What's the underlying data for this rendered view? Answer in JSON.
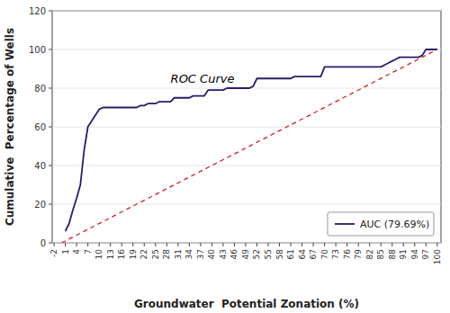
{
  "chart_data": {
    "type": "line",
    "xlabel": "Groundwater  Potential Zonation (%)",
    "ylabel": "Cumulative  Percentage of Wells",
    "xlim": [
      -2.5,
      101
    ],
    "ylim": [
      0,
      120
    ],
    "xticks": [
      -2,
      1,
      4,
      7,
      10,
      13,
      16,
      19,
      22,
      25,
      28,
      31,
      34,
      37,
      40,
      43,
      46,
      49,
      52,
      55,
      58,
      61,
      64,
      67,
      70,
      73,
      76,
      79,
      82,
      85,
      88,
      91,
      94,
      97,
      100
    ],
    "yticks": [
      0,
      20,
      40,
      60,
      80,
      100,
      120
    ],
    "legend": "lower right",
    "series": [
      {
        "color": "#cc2222",
        "line_style": "dashed",
        "x": [
          0,
          100
        ],
        "values": [
          0,
          100
        ]
      },
      {
        "name": "AUC (79.69%)",
        "color": "#2d1b69",
        "line_style": "solid",
        "x": [
          1,
          2,
          3,
          4,
          5,
          6,
          7,
          8,
          9,
          10,
          11,
          12,
          13,
          14,
          15,
          16,
          17,
          18,
          19,
          20,
          21,
          22,
          23,
          24,
          25,
          26,
          27,
          28,
          29,
          30,
          31,
          32,
          33,
          34,
          35,
          36,
          37,
          38,
          39,
          40,
          41,
          42,
          43,
          44,
          45,
          46,
          47,
          48,
          49,
          50,
          51,
          52,
          53,
          54,
          55,
          56,
          57,
          58,
          59,
          60,
          61,
          62,
          63,
          64,
          65,
          66,
          67,
          68,
          69,
          70,
          71,
          72,
          73,
          74,
          75,
          76,
          77,
          78,
          79,
          80,
          81,
          82,
          83,
          84,
          85,
          86,
          87,
          88,
          89,
          90,
          91,
          92,
          93,
          94,
          95,
          96,
          97,
          98,
          99,
          100
        ],
        "values": [
          6,
          10,
          17,
          23,
          30,
          48,
          60,
          63,
          66,
          69,
          70,
          70,
          70,
          70,
          70,
          70,
          70,
          70,
          70,
          70,
          71,
          71,
          72,
          72,
          72,
          73,
          73,
          73,
          73,
          75,
          75,
          75,
          75,
          75,
          76,
          76,
          76,
          76,
          79,
          79,
          79,
          79,
          79,
          80,
          80,
          80,
          80,
          80,
          80,
          80,
          81,
          85,
          85,
          85,
          85,
          85,
          85,
          85,
          85,
          85,
          85,
          86,
          86,
          86,
          86,
          86,
          86,
          86,
          86,
          91,
          91,
          91,
          91,
          91,
          91,
          91,
          91,
          91,
          91,
          91,
          91,
          91,
          91,
          91,
          91,
          92,
          93,
          94,
          95,
          96,
          96,
          96,
          96,
          96,
          96,
          97,
          100,
          100,
          100,
          100
        ]
      }
    ],
    "annotations": [
      {
        "text": "ROC Curve",
        "x": 46,
        "y": 83
      }
    ]
  }
}
